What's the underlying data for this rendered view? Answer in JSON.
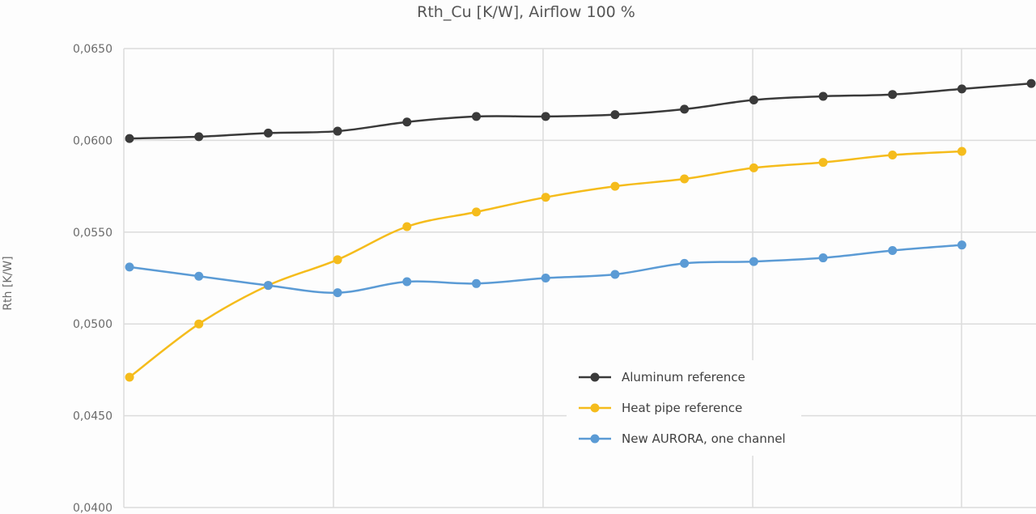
{
  "chart_data": {
    "type": "line",
    "title": "Rth_Cu [K/W], Airflow 100 %",
    "xlabel": "",
    "ylabel": "Rth [K/W]",
    "ylim": [
      0.04,
      0.065
    ],
    "yticks": [
      "0,0400",
      "0,0450",
      "0,0500",
      "0,0550",
      "0,0600",
      "0,0650"
    ],
    "grid": true,
    "smooth": true,
    "legend_position": "lower-right inside",
    "x": [
      1,
      2,
      3,
      4,
      5,
      6,
      7,
      8,
      9,
      10,
      11,
      12,
      13,
      14
    ],
    "series": [
      {
        "name": "Aluminum reference",
        "color": "#3a3a3a",
        "values": [
          0.0601,
          0.0602,
          0.0604,
          0.0605,
          0.061,
          0.0613,
          0.0613,
          0.0614,
          0.0617,
          0.0622,
          0.0624,
          0.0625,
          0.0628,
          0.0631
        ]
      },
      {
        "name": "Heat pipe reference",
        "color": "#f5bc1c",
        "values": [
          0.0471,
          0.05,
          0.0521,
          0.0535,
          0.0553,
          0.0561,
          0.0569,
          0.0575,
          0.0579,
          0.0585,
          0.0588,
          0.0592,
          0.0594,
          null
        ]
      },
      {
        "name": "New AURORA, one channel",
        "color": "#5b9bd5",
        "values": [
          0.0531,
          0.0526,
          0.0521,
          0.0517,
          0.0523,
          0.0522,
          0.0525,
          0.0527,
          0.0533,
          0.0534,
          0.0536,
          0.054,
          0.0543,
          null
        ]
      }
    ]
  }
}
